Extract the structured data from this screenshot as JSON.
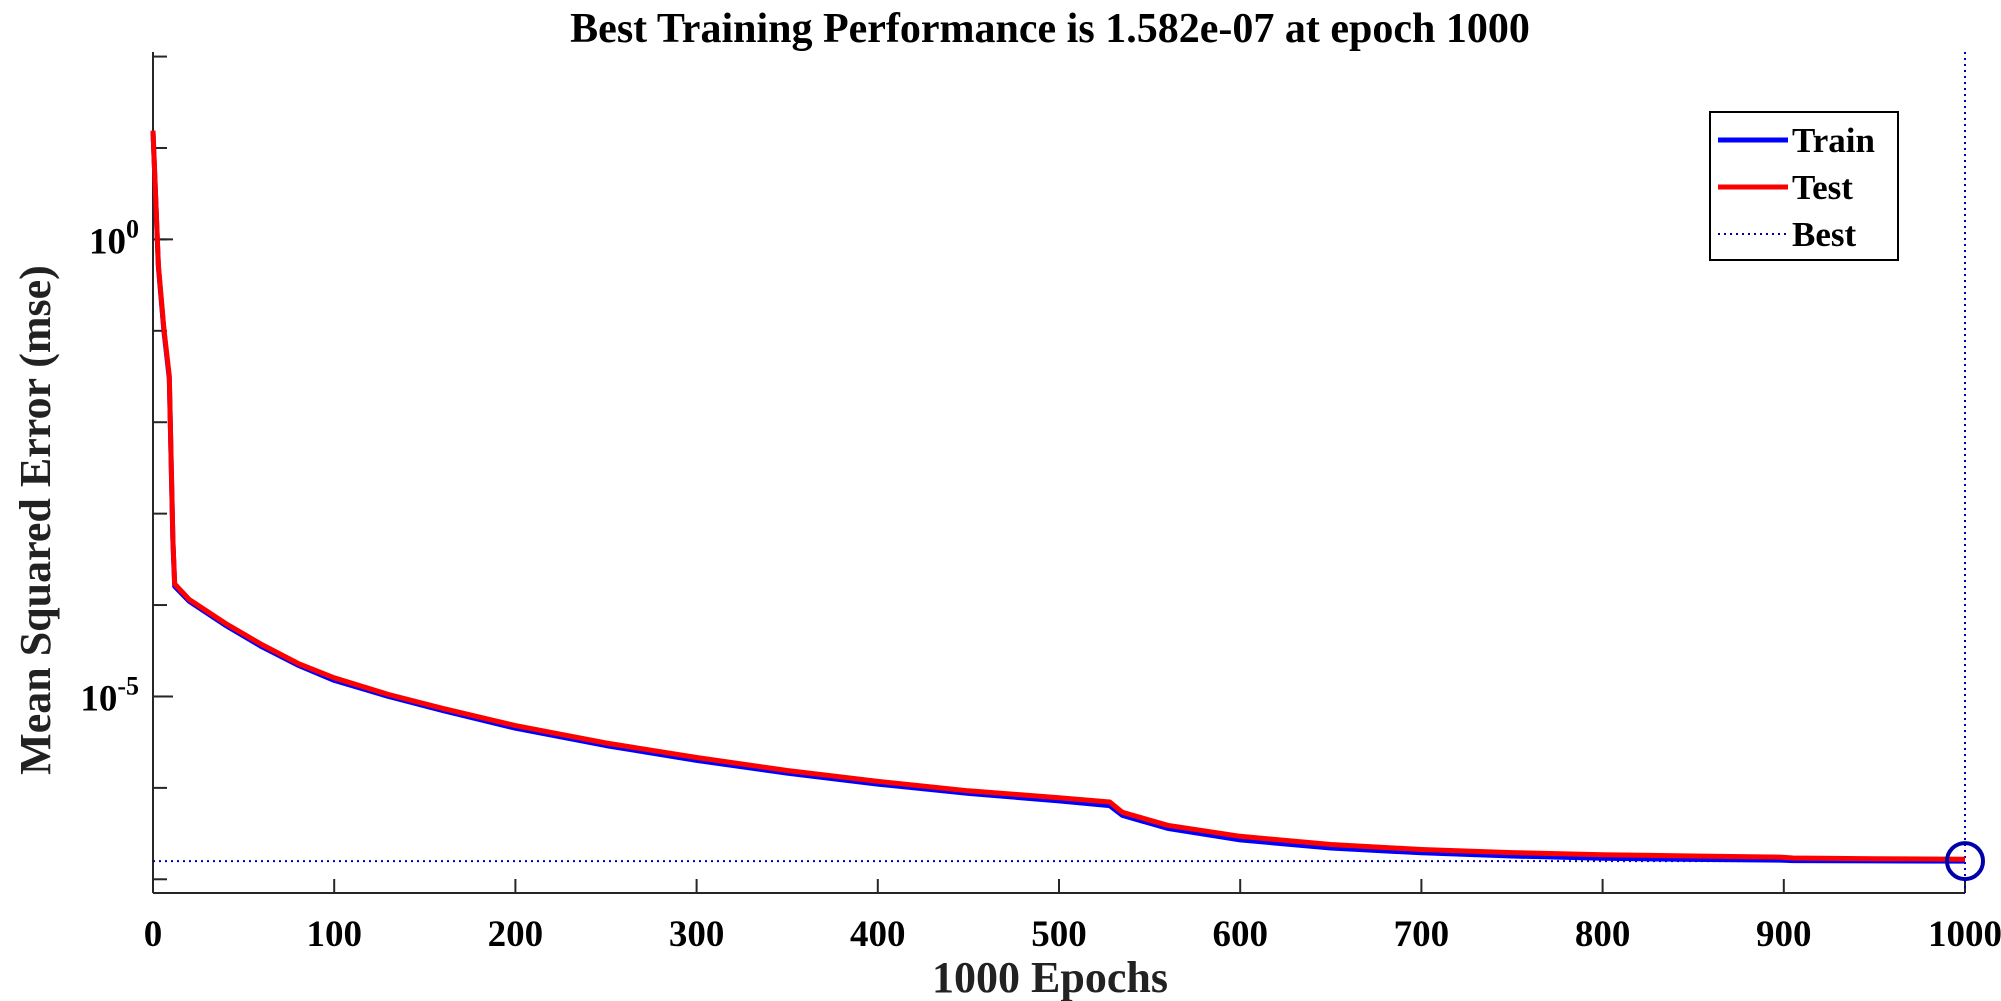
{
  "chart_data": {
    "type": "line",
    "title": "Best Training Performance is 1.582e-07 at epoch 1000",
    "xlabel": "1000 Epochs",
    "ylabel": "Mean Squared Error  (mse)",
    "xlim": [
      0,
      1000
    ],
    "ylog_lim": [
      -7.15,
      2.05
    ],
    "x_ticks": [
      0,
      100,
      200,
      300,
      400,
      500,
      600,
      700,
      800,
      900,
      1000
    ],
    "x_tick_labels": [
      "0",
      "100",
      "200",
      "300",
      "400",
      "500",
      "600",
      "700",
      "800",
      "900",
      "1000"
    ],
    "y_major_ticks": [
      {
        "base": "10",
        "exp": "0",
        "value": 1
      },
      {
        "base": "10",
        "exp": "-5",
        "value": 1e-05
      }
    ],
    "series": [
      {
        "name": "Train",
        "color": "#0000ff",
        "x": [
          0,
          3,
          6,
          9,
          11,
          12,
          20,
          40,
          60,
          80,
          100,
          130,
          160,
          200,
          250,
          300,
          350,
          400,
          450,
          500,
          528,
          535,
          560,
          600,
          650,
          700,
          750,
          800,
          850,
          898,
          905,
          950,
          1000
        ],
        "y": [
          15,
          0.5,
          0.1,
          0.03,
          0.0005,
          0.00016,
          0.00011,
          6e-05,
          3.5e-05,
          2.2e-05,
          1.5e-05,
          1e-05,
          7e-06,
          4.5e-06,
          2.9e-06,
          2e-06,
          1.45e-06,
          1.1e-06,
          8.7e-07,
          7.2e-07,
          6.4e-07,
          5e-07,
          3.6e-07,
          2.7e-07,
          2.2e-07,
          1.95e-07,
          1.8e-07,
          1.7e-07,
          1.65e-07,
          1.62e-07,
          1.6e-07,
          1.59e-07,
          1.582e-07
        ]
      },
      {
        "name": "Test",
        "color": "#ff0000",
        "x": [
          0,
          3,
          6,
          9,
          11,
          12,
          20,
          40,
          60,
          80,
          100,
          130,
          160,
          200,
          250,
          300,
          350,
          400,
          450,
          500,
          528,
          535,
          560,
          600,
          650,
          700,
          750,
          800,
          850,
          898,
          905,
          950,
          1000
        ],
        "y": [
          15.5,
          0.52,
          0.105,
          0.032,
          0.00052,
          0.00017,
          0.000115,
          6.3e-05,
          3.7e-05,
          2.3e-05,
          1.6e-05,
          1.05e-05,
          7.4e-06,
          4.8e-06,
          3.1e-06,
          2.15e-06,
          1.55e-06,
          1.18e-06,
          9.3e-07,
          7.8e-07,
          7e-07,
          5.4e-07,
          3.9e-07,
          2.95e-07,
          2.4e-07,
          2.12e-07,
          1.96e-07,
          1.86e-07,
          1.8e-07,
          1.75e-07,
          1.71e-07,
          1.68e-07,
          1.66e-07
        ]
      }
    ],
    "best": {
      "name": "Best",
      "x": 1000,
      "y": 1.582e-07,
      "color": "#0000aa"
    },
    "legend": {
      "position": "top-right",
      "entries": [
        {
          "label": "Train",
          "color": "#0000ff",
          "style": "solid"
        },
        {
          "label": "Test",
          "color": "#ff0000",
          "style": "solid"
        },
        {
          "label": "Best",
          "color": "#0000aa",
          "style": "dotted"
        }
      ]
    }
  }
}
